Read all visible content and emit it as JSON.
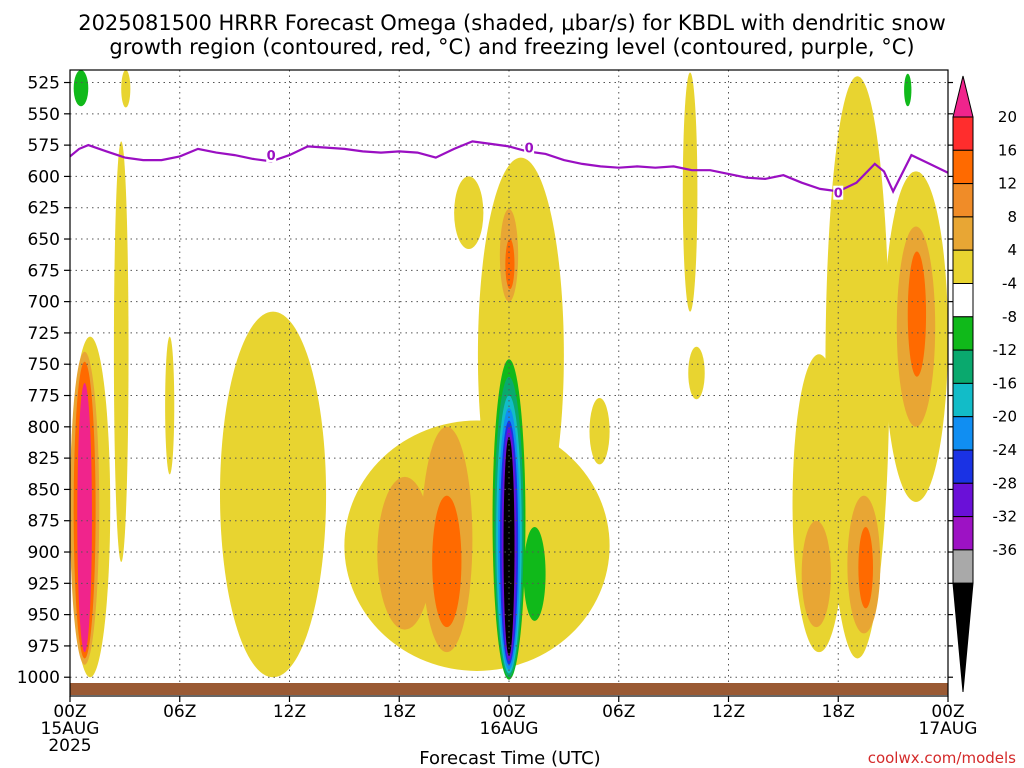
{
  "title_line1": "2025081500 HRRR Forecast Omega (shaded, μbar/s) for KBDL with dendritic snow",
  "title_line2": "growth region (contoured, red, °C) and freezing level (contoured, purple, °C)",
  "xlabel": "Forecast Time (UTC)",
  "credit": "coolwx.com/models",
  "x_ticks": [
    {
      "hours": 0,
      "lines": [
        "00Z",
        "15AUG",
        "2025"
      ]
    },
    {
      "hours": 6,
      "lines": [
        "06Z"
      ]
    },
    {
      "hours": 12,
      "lines": [
        "12Z"
      ]
    },
    {
      "hours": 18,
      "lines": [
        "18Z"
      ]
    },
    {
      "hours": 24,
      "lines": [
        "00Z",
        "16AUG"
      ]
    },
    {
      "hours": 30,
      "lines": [
        "06Z"
      ]
    },
    {
      "hours": 36,
      "lines": [
        "12Z"
      ]
    },
    {
      "hours": 42,
      "lines": [
        "18Z"
      ]
    },
    {
      "hours": 48,
      "lines": [
        "00Z",
        "17AUG"
      ]
    }
  ],
  "y_ticks": [
    525,
    550,
    575,
    600,
    625,
    650,
    675,
    700,
    725,
    750,
    775,
    800,
    825,
    850,
    875,
    900,
    925,
    950,
    975,
    1000
  ],
  "colorbar": {
    "labels": [
      "20",
      "16",
      "12",
      "8",
      "4",
      "-4",
      "-8",
      "-12",
      "-16",
      "-20",
      "-24",
      "-28",
      "-32",
      "-36"
    ],
    "colors": [
      "#ff2d2d",
      "#ff6a00",
      "#f08c28",
      "#e8a634",
      "#e8d430",
      "#ffffff",
      "#10b91a",
      "#0aa96e",
      "#12bcc8",
      "#108ef2",
      "#1a32e4",
      "#6a10d8",
      "#9d12c4",
      "#a9a9a9"
    ],
    "top_color": "#f0248c",
    "bottom_color": "#000000"
  },
  "colors": {
    "freezing_level": "#9a0fc2",
    "ground": "#9a5a34"
  },
  "chart_data": {
    "type": "heatmap",
    "title": "2025081500 HRRR Forecast Omega (shaded, μbar/s) for KBDL with dendritic snow growth region (contoured, red, °C) and freezing level (contoured, purple, °C)",
    "xlabel": "Forecast Time (UTC)",
    "ylabel": "",
    "x_range_hours": [
      0,
      48
    ],
    "y_range_mb": [
      515,
      1015
    ],
    "y_axis": "pressure, inverted",
    "grid": true,
    "freezing_level": {
      "label": "0",
      "hours": [
        0,
        0.5,
        1,
        2,
        3,
        4,
        5,
        6,
        7,
        8,
        9,
        10,
        11,
        12,
        13,
        14,
        15,
        16,
        17,
        18,
        19,
        20,
        21,
        22,
        23,
        24,
        25,
        26,
        27,
        28,
        29,
        30,
        31,
        32,
        33,
        34,
        35,
        36,
        37,
        38,
        39,
        40,
        41,
        42,
        43,
        44,
        44.5,
        45,
        46,
        47,
        48
      ],
      "pressure_mb": [
        584,
        578,
        575,
        580,
        585,
        587,
        587,
        584,
        578,
        581,
        583,
        586,
        588,
        583,
        576,
        577,
        578,
        580,
        581,
        580,
        581,
        585,
        578,
        572,
        574,
        576,
        580,
        582,
        587,
        590,
        592,
        593,
        592,
        593,
        592,
        595,
        595,
        598,
        601,
        602,
        599,
        605,
        610,
        612,
        605,
        590,
        596,
        612,
        583,
        590,
        597
      ]
    },
    "omega_regions": [
      {
        "level": 4,
        "hours": [
          0,
          2.2
        ],
        "pressure_mb": [
          728,
          1000
        ]
      },
      {
        "level": 8,
        "hours": [
          0,
          1.6
        ],
        "pressure_mb": [
          740,
          990
        ]
      },
      {
        "level": 12,
        "hours": [
          0.2,
          1.4
        ],
        "pressure_mb": [
          748,
          985
        ]
      },
      {
        "level": 20,
        "hours": [
          0.4,
          1.2
        ],
        "pressure_mb": [
          765,
          980
        ]
      },
      {
        "level": 4,
        "hours": [
          2.4,
          3.2
        ],
        "pressure_mb": [
          572,
          908
        ]
      },
      {
        "level": 4,
        "hours": [
          2.8,
          3.3
        ],
        "pressure_mb": [
          515,
          545
        ]
      },
      {
        "level": 4,
        "hours": [
          5.2,
          5.7
        ],
        "pressure_mb": [
          728,
          838
        ]
      },
      {
        "level": 4,
        "hours": [
          8.2,
          14
        ],
        "pressure_mb": [
          708,
          1000
        ]
      },
      {
        "level": 4,
        "hours": [
          15,
          29.5
        ],
        "pressure_mb": [
          795,
          995
        ]
      },
      {
        "level": 8,
        "hours": [
          16.8,
          19.8
        ],
        "pressure_mb": [
          840,
          962
        ]
      },
      {
        "level": 8,
        "hours": [
          19.2,
          22
        ],
        "pressure_mb": [
          800,
          980
        ]
      },
      {
        "level": 12,
        "hours": [
          19.8,
          21.4
        ],
        "pressure_mb": [
          855,
          960
        ]
      },
      {
        "level": 4,
        "hours": [
          21,
          22.6
        ],
        "pressure_mb": [
          600,
          658
        ]
      },
      {
        "level": 4,
        "hours": [
          22.3,
          27
        ],
        "pressure_mb": [
          585,
          900
        ]
      },
      {
        "level": 8,
        "hours": [
          23.5,
          24.5
        ],
        "pressure_mb": [
          626,
          700
        ]
      },
      {
        "level": 12,
        "hours": [
          23.8,
          24.3
        ],
        "pressure_mb": [
          650,
          690
        ]
      },
      {
        "level": 4,
        "hours": [
          33.8,
          34.7
        ],
        "pressure_mb": [
          736,
          778
        ]
      },
      {
        "level": 4,
        "hours": [
          28.4,
          29.5
        ],
        "pressure_mb": [
          777,
          830
        ]
      },
      {
        "level": 4,
        "hours": [
          33.5,
          34.3
        ],
        "pressure_mb": [
          517,
          708
        ]
      },
      {
        "level": 4,
        "hours": [
          39.5,
          42.4
        ],
        "pressure_mb": [
          742,
          980
        ]
      },
      {
        "level": 8,
        "hours": [
          40,
          41.6
        ],
        "pressure_mb": [
          875,
          960
        ]
      },
      {
        "level": 4,
        "hours": [
          41.3,
          44.8
        ],
        "pressure_mb": [
          520,
          985
        ]
      },
      {
        "level": 8,
        "hours": [
          42.5,
          44.3
        ],
        "pressure_mb": [
          855,
          965
        ]
      },
      {
        "level": 12,
        "hours": [
          43.1,
          43.9
        ],
        "pressure_mb": [
          880,
          945
        ]
      },
      {
        "level": 4,
        "hours": [
          44.5,
          48
        ],
        "pressure_mb": [
          596,
          860
        ]
      },
      {
        "level": 8,
        "hours": [
          45.2,
          47.3
        ],
        "pressure_mb": [
          640,
          800
        ]
      },
      {
        "level": 12,
        "hours": [
          45.8,
          46.8
        ],
        "pressure_mb": [
          660,
          760
        ]
      },
      {
        "level": -8,
        "hours": [
          24.8,
          26
        ],
        "pressure_mb": [
          880,
          955
        ]
      },
      {
        "level": -8,
        "hours": [
          0.2,
          1
        ],
        "pressure_mb": [
          515,
          544
        ]
      },
      {
        "level": -8,
        "hours": [
          45.6,
          46
        ],
        "pressure_mb": [
          518,
          544
        ]
      },
      {
        "level": -8,
        "hours": [
          23.1,
          24.9
        ],
        "pressure_mb": [
          746,
          1002
        ]
      },
      {
        "level": -12,
        "hours": [
          23.2,
          24.8
        ],
        "pressure_mb": [
          760,
          1000
        ]
      },
      {
        "level": -16,
        "hours": [
          23.3,
          24.7
        ],
        "pressure_mb": [
          775,
          997
        ]
      },
      {
        "level": -20,
        "hours": [
          23.4,
          24.6
        ],
        "pressure_mb": [
          785,
          994
        ]
      },
      {
        "level": -24,
        "hours": [
          23.5,
          24.5
        ],
        "pressure_mb": [
          795,
          990
        ]
      },
      {
        "level": -28,
        "hours": [
          23.6,
          24.4
        ],
        "pressure_mb": [
          800,
          987
        ]
      },
      {
        "level": -36,
        "hours": [
          23.7,
          24.3
        ],
        "pressure_mb": [
          808,
          983
        ]
      }
    ]
  }
}
